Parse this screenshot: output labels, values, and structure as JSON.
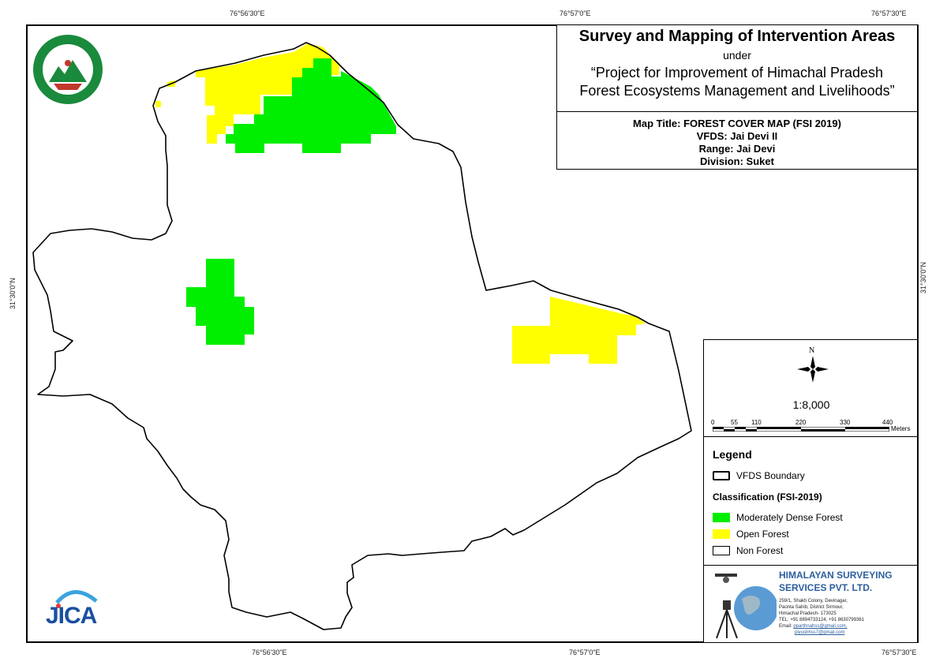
{
  "graticule": {
    "top": [
      "76°56'30\"E",
      "76°57'0\"E",
      "76°57'30\"E"
    ],
    "bottom": [
      "76°56'30\"E",
      "76°57'0\"E",
      "76°57'30\"E"
    ],
    "left": "31°30'0\"N",
    "right": "31°30'0\"N"
  },
  "title_block": {
    "main": "Survey and Mapping of Intervention Areas",
    "under": "under",
    "project_line1": "“Project for Improvement of Himachal Pradesh",
    "project_line2": "Forest Ecosystems Management and Livelihoods”"
  },
  "map_info": {
    "map_title": "Map Title: FOREST COVER MAP (FSI 2019)",
    "vfds": "VFDS: Jai Devi II",
    "range": "Range: Jai Devi",
    "division": "Division: Suket"
  },
  "scale": {
    "north": "N",
    "ratio": "1:8,000",
    "ticks": [
      "0",
      "55",
      "110",
      "220",
      "330",
      "440"
    ],
    "unit": "Meters"
  },
  "legend": {
    "title": "Legend",
    "boundary_label": "VFDS Boundary",
    "classification_title": "Classification (FSI-2019)",
    "items": [
      {
        "label": "Moderately Dense Forest",
        "color": "#00ee00"
      },
      {
        "label": "Open Forest",
        "color": "#ffff00"
      },
      {
        "label": "Non Forest",
        "color": "#ffffff"
      }
    ]
  },
  "company": {
    "name_line1": "HIMALAYAN SURVEYING",
    "name_line2": "SERVICES PVT. LTD.",
    "address1": "259/1, Shakti Colony, Devinagar,",
    "address2": "Paonta Sahib, District Sirmour,",
    "address3": "Himachal Pradesh- 173025",
    "tel": "TEL: +91 8894733124, +91 8630799361",
    "email_label": "Email:",
    "email1": "pparthnahss@gmail.com,",
    "email2": "piyushhss7@gmail.com"
  },
  "logos": {
    "forest_dept_text": "वन ही जल, पृथ्वी कल्याण",
    "forest_dept_bottom": "वन विभाग हिमाचल प्रदेश",
    "jica": "JICA"
  },
  "colors": {
    "moderately_dense": "#00ee00",
    "open_forest": "#ffff00",
    "boundary": "#000000",
    "company_blue": "#2c5e9e"
  }
}
